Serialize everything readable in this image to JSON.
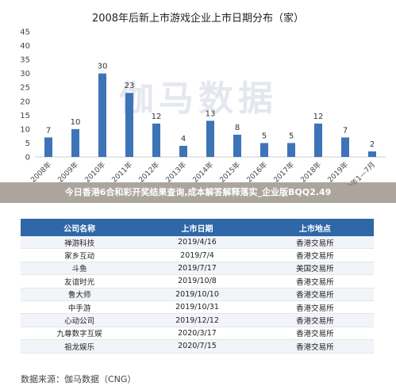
{
  "chart_data": {
    "type": "bar",
    "title": "2008年后新上市游戏企业上市日期分布（家）",
    "categories": [
      "2008年",
      "2009年",
      "2010年",
      "2011年",
      "2012年",
      "2013年",
      "2014年",
      "2015年",
      "2016年",
      "2017年",
      "2018年",
      "2019年",
      "2020年1—7月"
    ],
    "values": [
      7,
      10,
      30,
      23,
      12,
      4,
      13,
      8,
      5,
      5,
      12,
      7,
      2
    ],
    "yticks": [
      0,
      5,
      10,
      15,
      20,
      25,
      30,
      35,
      40,
      45
    ],
    "ylim": [
      0,
      45
    ],
    "grid": false,
    "bar_color": "#3d74b8"
  },
  "watermark": "伽马数据",
  "banner": "今日香港6合和彩开奖结果查询,成本解答解释落实_企业版BQQ2.49",
  "table": {
    "headers": [
      "公司名称",
      "上市日期",
      "上市地点"
    ],
    "rows": [
      [
        "禅游科技",
        "2019/4/16",
        "香港交易所"
      ],
      [
        "家乡互动",
        "2019/7/4",
        "香港交易所"
      ],
      [
        "斗鱼",
        "2019/7/17",
        "美国交易所"
      ],
      [
        "友谊时光",
        "2019/10/8",
        "香港交易所"
      ],
      [
        "鲁大师",
        "2019/10/10",
        "香港交易所"
      ],
      [
        "中手游",
        "2019/10/31",
        "香港交易所"
      ],
      [
        "心动公司",
        "2019/12/12",
        "香港交易所"
      ],
      [
        "九尊数字互娱",
        "2020/3/17",
        "香港交易所"
      ],
      [
        "祖龙娱乐",
        "2020/7/15",
        "香港交易所"
      ]
    ]
  },
  "source": "数据来源：伽马数据（CNG）"
}
